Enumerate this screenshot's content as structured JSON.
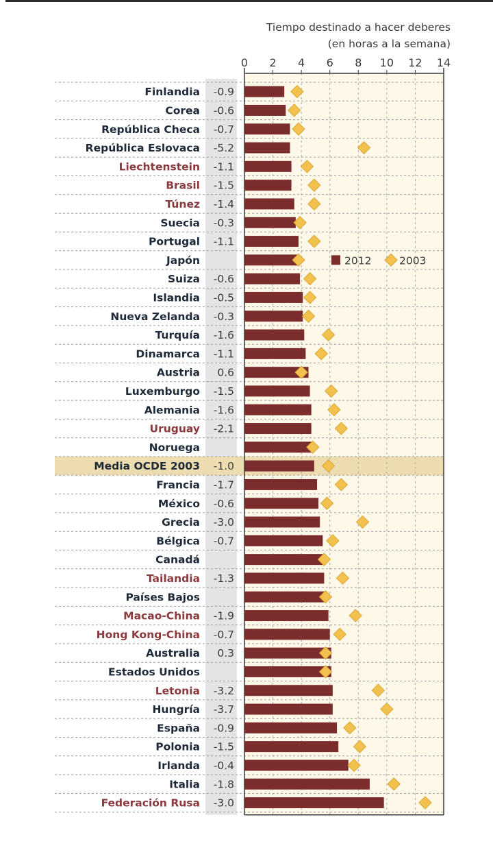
{
  "chart_data": {
    "type": "bar",
    "title": "Tiempo destinado a hacer deberes",
    "subtitle": "(en horas a la semana)",
    "xlabel": "",
    "ylabel": "",
    "xlim": [
      0,
      14
    ],
    "x_ticks": [
      "0",
      "2",
      "4",
      "6",
      "8",
      "10",
      "12",
      "14"
    ],
    "grid": true,
    "legend": {
      "placement": "top-right",
      "entries": [
        "2012",
        "2003"
      ]
    },
    "highlight_row": "Media OCDE 2003",
    "colors": {
      "bar_2012": "#7b2d2e",
      "marker_2003": "#f2c14e",
      "partner_label": "#8b3a3e",
      "oecd_label": "#1f2a38",
      "plot_bg": "#fdf8e8",
      "highlight_bg": "#ecdcb0",
      "change_col_bg": "#e4e4e6"
    },
    "categories": [
      "Finlandia",
      "Corea",
      "República Checa",
      "República Eslovaca",
      "Liechtenstein",
      "Brasil",
      "Túnez",
      "Suecia",
      "Portugal",
      "Japón",
      "Suiza",
      "Islandia",
      "Nueva Zelanda",
      "Turquía",
      "Dinamarca",
      "Austria",
      "Luxemburgo",
      "Alemania",
      "Uruguay",
      "Noruega",
      "Media OCDE 2003",
      "Francia",
      "México",
      "Grecia",
      "Bélgica",
      "Canadá",
      "Tailandia",
      "Países Bajos",
      "Macao-China",
      "Hong Kong-China",
      "Australia",
      "Estados Unidos",
      "Letonia",
      "Hungría",
      "España",
      "Polonia",
      "Irlanda",
      "Italia",
      "Federación Rusa"
    ],
    "partner": [
      false,
      false,
      false,
      false,
      true,
      true,
      true,
      false,
      false,
      false,
      false,
      false,
      false,
      false,
      false,
      false,
      false,
      false,
      true,
      false,
      false,
      false,
      false,
      false,
      false,
      false,
      true,
      false,
      true,
      true,
      false,
      false,
      true,
      false,
      false,
      false,
      false,
      false,
      true
    ],
    "change_labels": [
      "-0.9",
      "-0.6",
      "-0.7",
      "-5.2",
      "-1.1",
      "-1.5",
      "-1.4",
      "-0.3",
      "-1.1",
      "",
      "-0.6",
      "-0.5",
      "-0.3",
      "-1.6",
      "-1.1",
      "0.6",
      "-1.5",
      "-1.6",
      "-2.1",
      "",
      "-1.0",
      "-1.7",
      "-0.6",
      "-3.0",
      "-0.7",
      "",
      "-1.3",
      "",
      "-1.9",
      "-0.7",
      "0.3",
      "",
      "-3.2",
      "-3.7",
      "-0.9",
      "-1.5",
      "-0.4",
      "-1.8",
      "-3.0"
    ],
    "series": [
      {
        "name": "2012",
        "type": "bar",
        "values": [
          2.8,
          2.9,
          3.2,
          3.2,
          3.3,
          3.3,
          3.5,
          3.6,
          3.8,
          3.7,
          3.9,
          4.1,
          4.1,
          4.2,
          4.3,
          4.5,
          4.6,
          4.7,
          4.7,
          4.7,
          4.9,
          5.1,
          5.2,
          5.3,
          5.5,
          5.5,
          5.6,
          5.6,
          5.9,
          6.0,
          6.1,
          6.1,
          6.2,
          6.2,
          6.5,
          6.6,
          7.3,
          8.8,
          9.8
        ]
      },
      {
        "name": "2003",
        "type": "scatter",
        "marker": "diamond",
        "values": [
          3.7,
          3.5,
          3.8,
          8.4,
          4.4,
          4.9,
          4.9,
          3.9,
          4.9,
          3.8,
          4.6,
          4.6,
          4.5,
          5.9,
          5.4,
          4.0,
          6.1,
          6.3,
          6.8,
          4.8,
          5.9,
          6.8,
          5.8,
          8.3,
          6.2,
          5.6,
          6.9,
          5.7,
          7.8,
          6.7,
          5.7,
          5.7,
          9.4,
          10.0,
          7.4,
          8.1,
          7.7,
          10.5,
          12.7
        ]
      }
    ]
  }
}
